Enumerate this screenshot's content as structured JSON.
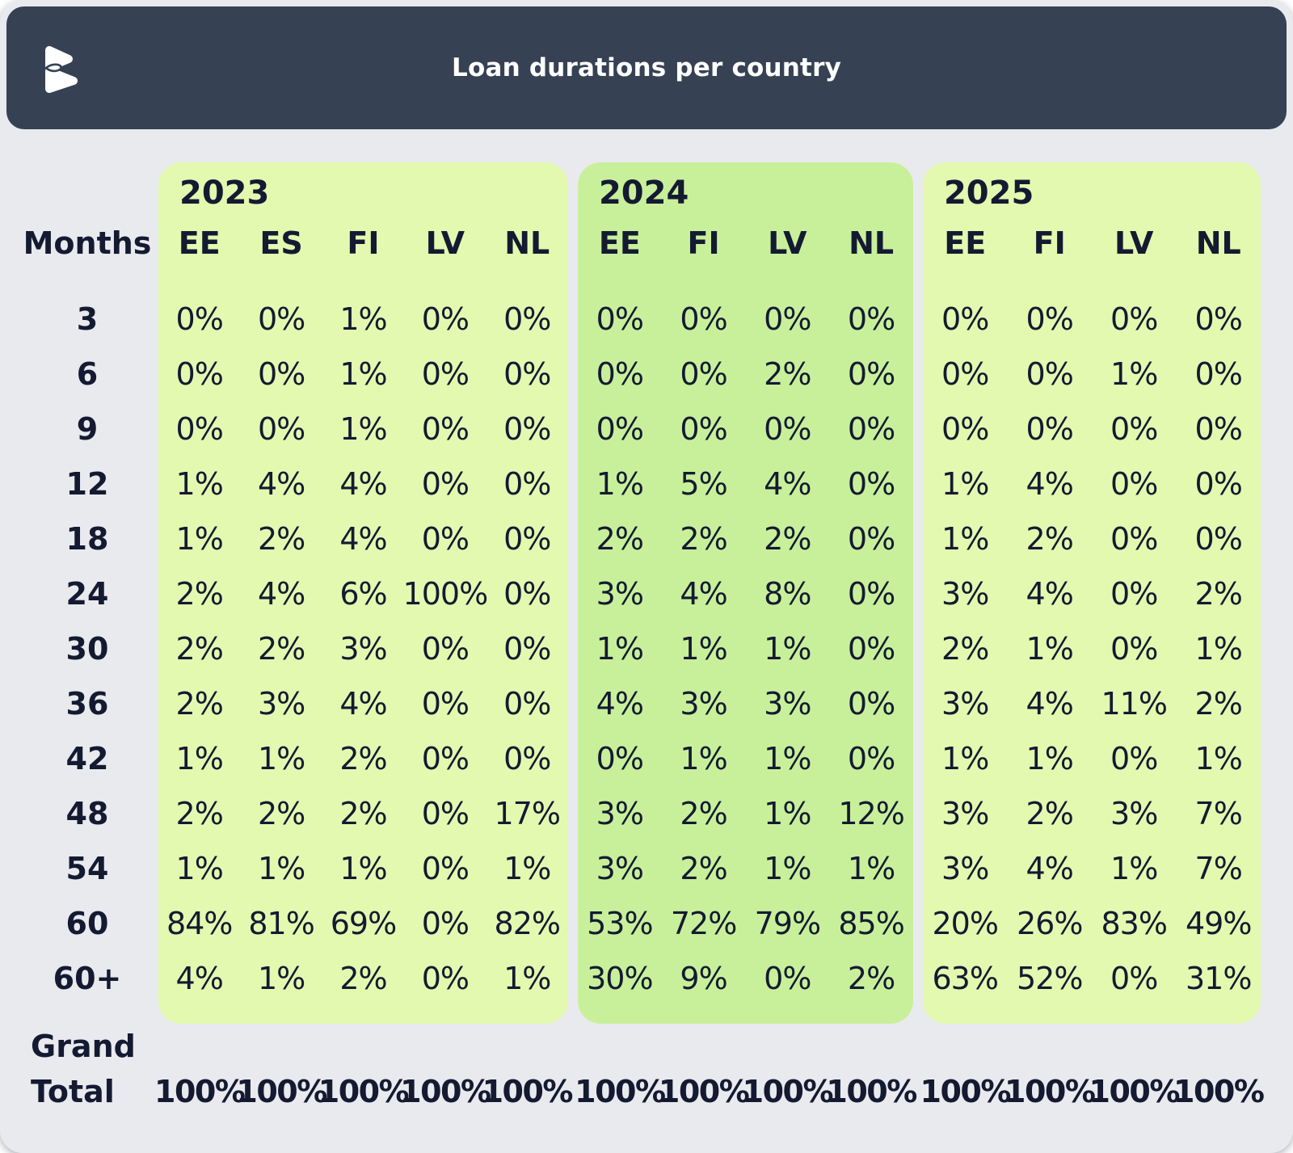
{
  "header": {
    "title": "Loan durations per country",
    "logo": "brand-logo"
  },
  "colors": {
    "page_bg": "#E9EAEE",
    "header_bg": "#364254",
    "panel_light": "#E3F9B0",
    "panel_dark": "#C8F09B",
    "text": "#141A31",
    "title_text": "#FFFFFF"
  },
  "chart_data": {
    "type": "table",
    "title": "Loan durations per country",
    "row_label_header": "Months",
    "row_labels": [
      "3",
      "6",
      "9",
      "12",
      "18",
      "24",
      "30",
      "36",
      "42",
      "48",
      "54",
      "60",
      "60+"
    ],
    "sections": [
      {
        "year": "2023",
        "shade": "light",
        "columns": [
          "EE",
          "ES",
          "FI",
          "LV",
          "NL"
        ],
        "values_pct": [
          [
            0,
            0,
            1,
            0,
            0
          ],
          [
            0,
            0,
            1,
            0,
            0
          ],
          [
            0,
            0,
            1,
            0,
            0
          ],
          [
            1,
            4,
            4,
            0,
            0
          ],
          [
            1,
            2,
            4,
            0,
            0
          ],
          [
            2,
            4,
            6,
            100,
            0
          ],
          [
            2,
            2,
            3,
            0,
            0
          ],
          [
            2,
            3,
            4,
            0,
            0
          ],
          [
            1,
            1,
            2,
            0,
            0
          ],
          [
            2,
            2,
            2,
            0,
            17
          ],
          [
            1,
            1,
            1,
            0,
            1
          ],
          [
            84,
            81,
            69,
            0,
            82
          ],
          [
            4,
            1,
            2,
            0,
            1
          ]
        ]
      },
      {
        "year": "2024",
        "shade": "dark",
        "columns": [
          "EE",
          "FI",
          "LV",
          "NL"
        ],
        "values_pct": [
          [
            0,
            0,
            0,
            0
          ],
          [
            0,
            0,
            2,
            0
          ],
          [
            0,
            0,
            0,
            0
          ],
          [
            1,
            5,
            4,
            0
          ],
          [
            2,
            2,
            2,
            0
          ],
          [
            3,
            4,
            8,
            0
          ],
          [
            1,
            1,
            1,
            0
          ],
          [
            4,
            3,
            3,
            0
          ],
          [
            0,
            1,
            1,
            0
          ],
          [
            3,
            2,
            1,
            12
          ],
          [
            3,
            2,
            1,
            1
          ],
          [
            53,
            72,
            79,
            85
          ],
          [
            30,
            9,
            0,
            2
          ]
        ]
      },
      {
        "year": "2025",
        "shade": "light",
        "columns": [
          "EE",
          "FI",
          "LV",
          "NL"
        ],
        "values_pct": [
          [
            0,
            0,
            0,
            0
          ],
          [
            0,
            0,
            1,
            0
          ],
          [
            0,
            0,
            0,
            0
          ],
          [
            1,
            4,
            0,
            0
          ],
          [
            1,
            2,
            0,
            0
          ],
          [
            3,
            4,
            0,
            2
          ],
          [
            2,
            1,
            0,
            1
          ],
          [
            3,
            4,
            11,
            2
          ],
          [
            1,
            1,
            0,
            1
          ],
          [
            3,
            2,
            3,
            7
          ],
          [
            3,
            4,
            1,
            7
          ],
          [
            20,
            26,
            83,
            49
          ],
          [
            63,
            52,
            0,
            31
          ]
        ]
      }
    ],
    "grand_total_label": "Grand Total",
    "grand_total_values_pct": [
      100,
      100,
      100,
      100,
      100,
      100,
      100,
      100,
      100,
      100,
      100,
      100,
      100
    ]
  }
}
